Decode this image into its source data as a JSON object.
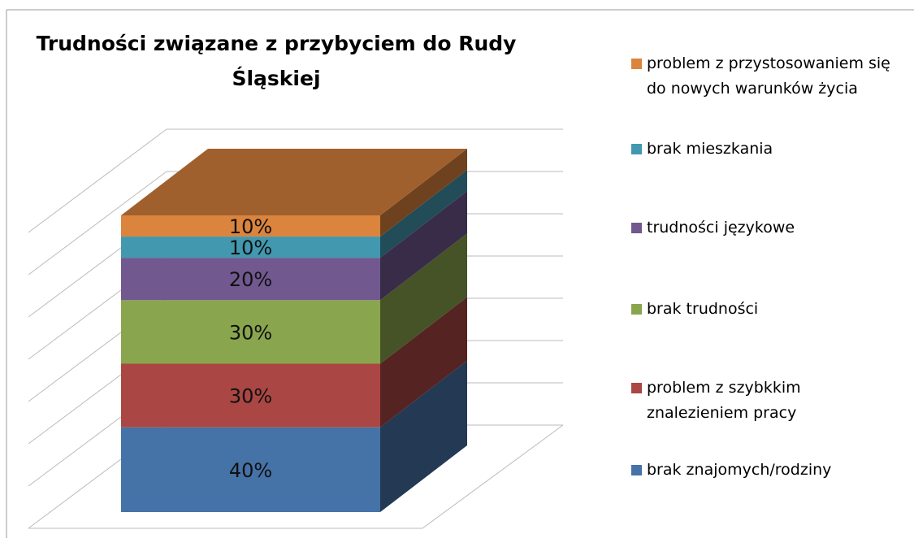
{
  "chart_data": {
    "type": "stacked_bar_3d",
    "title": "Trudności związane z przybyciem do Rudy Śląskiej",
    "categories": [
      null
    ],
    "series": [
      {
        "name": "brak znajomych/rodziny",
        "color": "#4572a7",
        "values": [
          40
        ],
        "value_labels": [
          "40%"
        ]
      },
      {
        "name": "problem z szybkkim znalezieniem pracy",
        "color": "#aa4643",
        "values": [
          30
        ],
        "value_labels": [
          "30%"
        ]
      },
      {
        "name": "brak trudności",
        "color": "#89a54e",
        "values": [
          30
        ],
        "value_labels": [
          "30%"
        ]
      },
      {
        "name": "trudności językowe",
        "color": "#71588f",
        "values": [
          20
        ],
        "value_labels": [
          "20%"
        ]
      },
      {
        "name": "brak mieszkania",
        "color": "#4198af",
        "values": [
          10
        ],
        "value_labels": [
          "10%"
        ]
      },
      {
        "name": "problem z przystosowaniem się do nowych warunków życia",
        "color": "#db843d",
        "values": [
          10
        ],
        "value_labels": [
          "10%"
        ]
      }
    ],
    "ylim": [
      0,
      140
    ],
    "yticks": [
      0,
      20,
      40,
      60,
      80,
      100,
      120,
      140
    ],
    "grid": true
  }
}
